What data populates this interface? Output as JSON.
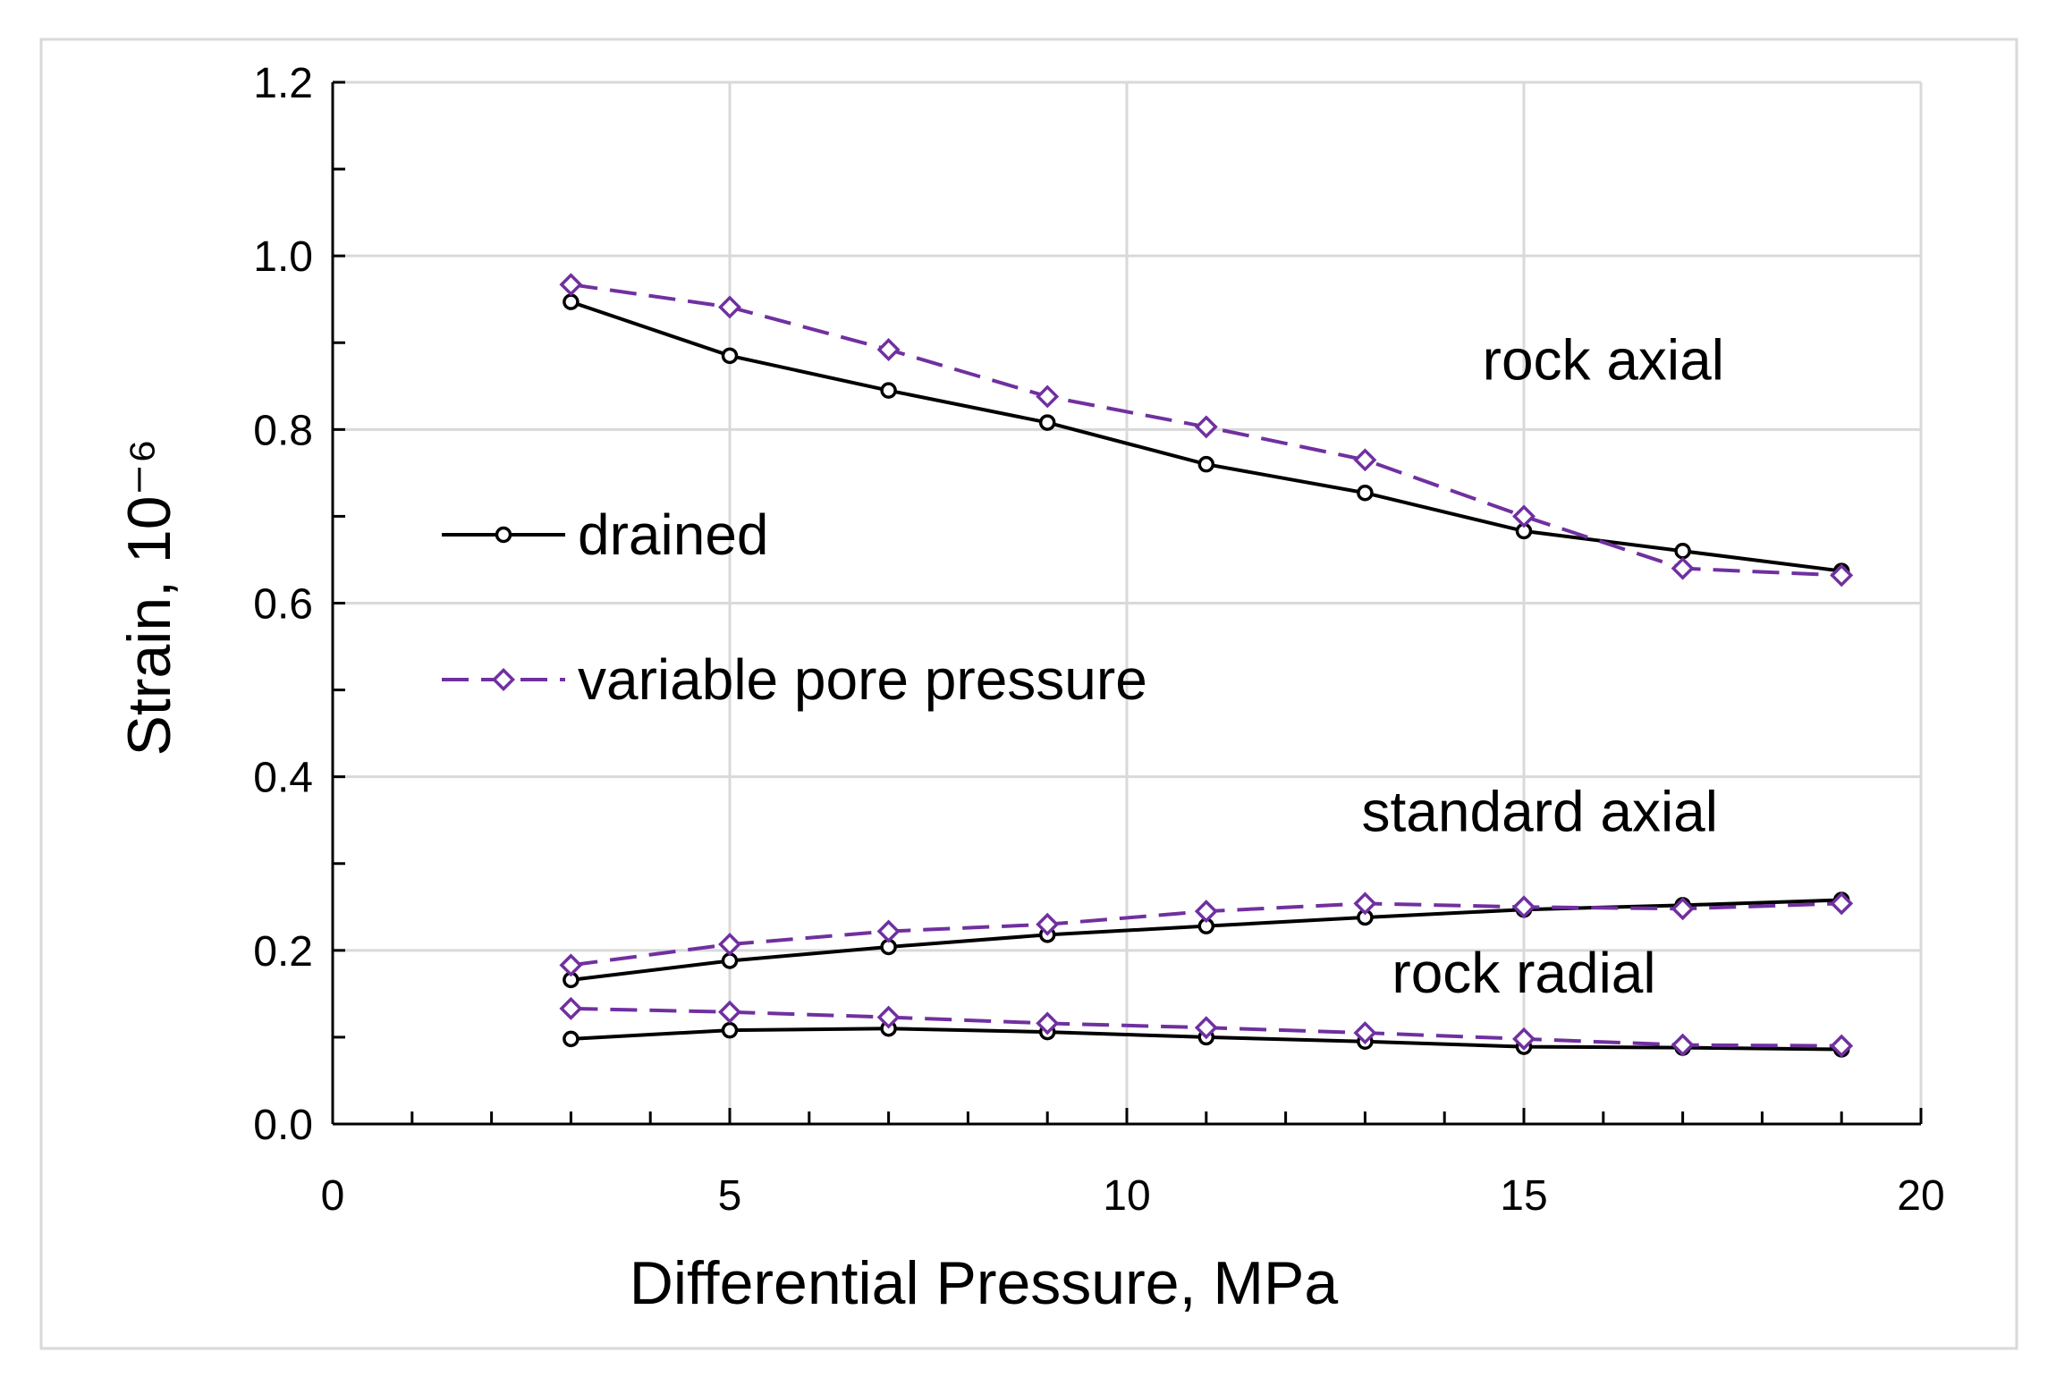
{
  "chart_data": {
    "type": "line",
    "title": "",
    "xlabel": "Differential Pressure, MPa",
    "ylabel": "Strain, 10⁻⁶",
    "xlim": [
      0,
      20
    ],
    "ylim": [
      0,
      1.2
    ],
    "x_ticks": [
      0,
      5,
      10,
      15,
      20
    ],
    "x_tick_labels": [
      "0",
      "5",
      "10",
      "15",
      "20"
    ],
    "y_ticks": [
      0,
      0.2,
      0.4,
      0.6,
      0.8,
      1.0,
      1.2
    ],
    "y_tick_labels": [
      "0.0",
      "0.2",
      "0.4",
      "0.6",
      "0.8",
      "1.0",
      "1.2"
    ],
    "grid": true,
    "colors": {
      "drained": "#000000",
      "variable": "#7030a0",
      "grid": "#d9d9d9",
      "frame": "#d9d9d9"
    },
    "legend": [
      {
        "label": "drained",
        "style": "solid",
        "marker": "circle"
      },
      {
        "label": "variable pore pressure",
        "style": "dashed",
        "marker": "diamond"
      }
    ],
    "annotations": [
      {
        "text": "rock axial",
        "x": 16.0,
        "y": 0.88
      },
      {
        "text": "standard axial",
        "x": 15.2,
        "y": 0.36
      },
      {
        "text": "rock radial",
        "x": 15.0,
        "y": 0.174
      }
    ],
    "x": [
      3,
      5,
      7,
      9,
      11,
      13,
      15,
      17,
      19
    ],
    "series": [
      {
        "name": "rock axial - drained",
        "kind": "drained",
        "values": [
          0.947,
          0.885,
          0.845,
          0.808,
          0.76,
          0.727,
          0.683,
          0.66,
          0.637
        ]
      },
      {
        "name": "rock axial - variable pore pressure",
        "kind": "variable",
        "values": [
          0.967,
          0.941,
          0.892,
          0.838,
          0.803,
          0.765,
          0.7,
          0.64,
          0.632
        ]
      },
      {
        "name": "standard axial - drained",
        "kind": "drained",
        "values": [
          0.166,
          0.188,
          0.204,
          0.218,
          0.228,
          0.238,
          0.247,
          0.252,
          0.258
        ]
      },
      {
        "name": "standard axial - variable pore pressure",
        "kind": "variable",
        "values": [
          0.183,
          0.207,
          0.222,
          0.23,
          0.245,
          0.254,
          0.25,
          0.248,
          0.254
        ]
      },
      {
        "name": "rock radial - drained",
        "kind": "drained",
        "values": [
          0.098,
          0.108,
          0.11,
          0.106,
          0.1,
          0.095,
          0.089,
          0.088,
          0.086
        ]
      },
      {
        "name": "rock radial - variable pore pressure",
        "kind": "variable",
        "values": [
          0.133,
          0.129,
          0.123,
          0.116,
          0.111,
          0.105,
          0.098,
          0.091,
          0.09
        ]
      }
    ]
  }
}
